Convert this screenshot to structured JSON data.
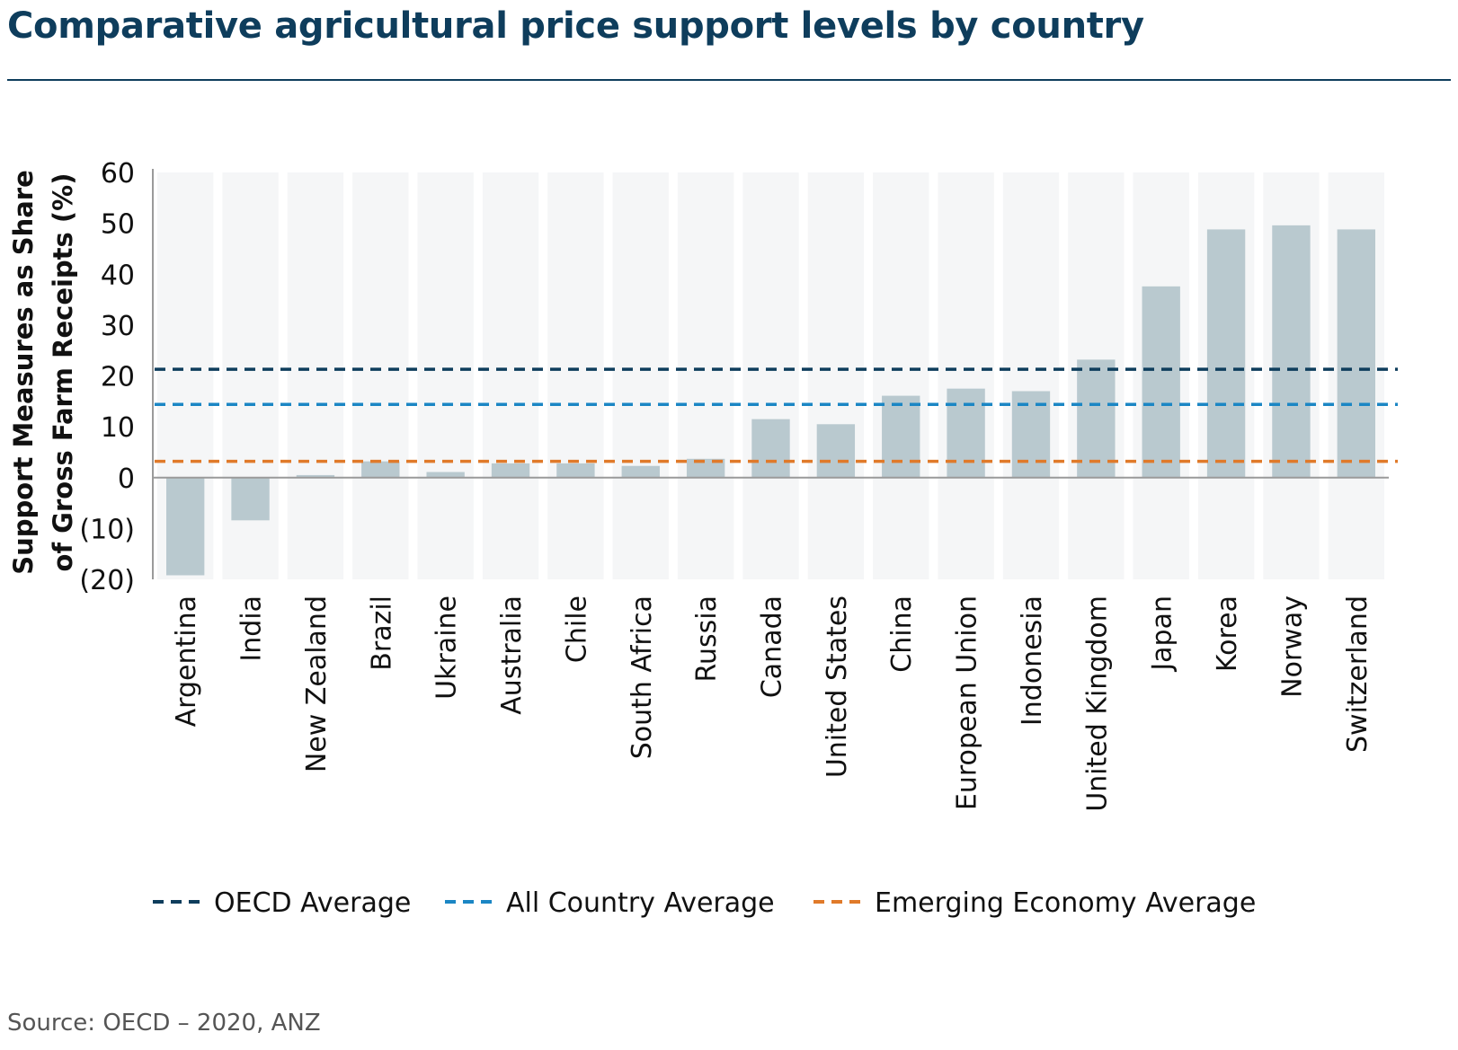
{
  "title": "Comparative agricultural price support levels by country",
  "source": "Source: OECD – 2020, ANZ",
  "colors": {
    "title": "#0e3d5c",
    "bar": "#b9c9cf",
    "column_band": "#f5f6f7",
    "oecd": "#0e3d5c",
    "all_country": "#1b86c4",
    "emerging": "#e07a2a",
    "axis": "#9a9a9a"
  },
  "chart_data": {
    "type": "bar",
    "ylabel_lines": [
      "Support Measures as Share",
      "of Gross Farm Receipts (%)"
    ],
    "ylim": [
      -20,
      60
    ],
    "yticks": [
      60,
      50,
      40,
      30,
      20,
      10,
      0,
      -10,
      -20
    ],
    "ytick_labels": [
      "60",
      "50",
      "40",
      "30",
      "20",
      "10",
      "0",
      "(10)",
      "(20)"
    ],
    "categories": [
      "Argentina",
      "India",
      "New Zealand",
      "Brazil",
      "Ukraine",
      "Australia",
      "Chile",
      "South Africa",
      "Russia",
      "Canada",
      "United States",
      "China",
      "European Union",
      "Indonesia",
      "United Kingdom",
      "Japan",
      "Korea",
      "Norway",
      "Switzerland"
    ],
    "values": [
      -19.2,
      -8.4,
      0.5,
      3.2,
      1.1,
      2.8,
      2.8,
      2.3,
      3.7,
      11.5,
      10.5,
      16.1,
      17.5,
      17.0,
      23.2,
      37.6,
      48.8,
      49.6,
      48.8
    ],
    "reference_lines": [
      {
        "name": "OECD Average",
        "value": 21.3,
        "color": "#0e3d5c"
      },
      {
        "name": "All Country Average",
        "value": 14.4,
        "color": "#1b86c4"
      },
      {
        "name": "Emerging Economy Average",
        "value": 3.2,
        "color": "#e07a2a"
      }
    ],
    "legend_position": "bottom",
    "grid": false
  }
}
